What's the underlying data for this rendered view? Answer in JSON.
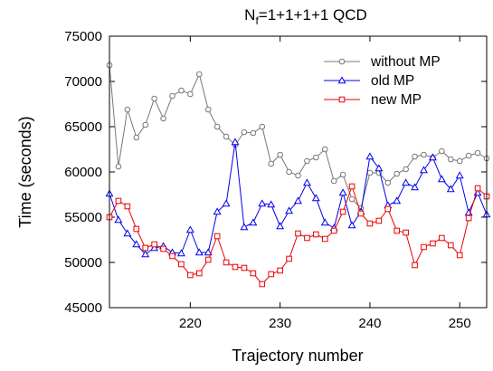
{
  "chart_data": {
    "type": "line",
    "title_main": "N",
    "title_sub": "f",
    "title_rest": "=1+1+1+1  QCD",
    "xlabel": "Trajectory number",
    "ylabel": "Time (seconds)",
    "xlim": [
      211,
      253
    ],
    "ylim": [
      45000,
      75000
    ],
    "xticks": [
      220,
      230,
      240,
      250
    ],
    "yticks": [
      45000,
      50000,
      55000,
      60000,
      65000,
      70000,
      75000
    ],
    "legend_position": "top-right",
    "x": [
      211,
      212,
      213,
      214,
      215,
      216,
      217,
      218,
      219,
      220,
      221,
      222,
      223,
      224,
      225,
      226,
      227,
      228,
      229,
      230,
      231,
      232,
      233,
      234,
      235,
      236,
      237,
      238,
      239,
      240,
      241,
      242,
      243,
      244,
      245,
      246,
      247,
      248,
      249,
      250,
      251,
      252,
      253
    ],
    "series": [
      {
        "name": "without MP",
        "color": "#777777",
        "marker": "circle",
        "values": [
          71800,
          60600,
          66900,
          63800,
          65200,
          68100,
          65900,
          68400,
          69000,
          68600,
          70800,
          66900,
          65000,
          63900,
          63000,
          64400,
          64300,
          65000,
          60900,
          61900,
          60000,
          59600,
          61200,
          61600,
          62500,
          59000,
          59700,
          57000,
          56000,
          59900,
          59900,
          58800,
          59800,
          60300,
          61700,
          61900,
          61600,
          62300,
          61400,
          61200,
          61800,
          62100,
          61500
        ]
      },
      {
        "name": "old MP",
        "color": "#0000ee",
        "marker": "triangle",
        "values": [
          57600,
          54700,
          53200,
          52000,
          50900,
          51600,
          51800,
          51100,
          51000,
          53600,
          51100,
          51100,
          55600,
          56500,
          63300,
          53900,
          54400,
          56500,
          56400,
          54000,
          55700,
          56800,
          58800,
          57100,
          54400,
          53800,
          57700,
          54100,
          55600,
          61700,
          60400,
          56300,
          56800,
          58800,
          58300,
          60200,
          61600,
          59200,
          58100,
          59600,
          55500,
          57700,
          55300
        ]
      },
      {
        "name": "new MP",
        "color": "#ee0000",
        "marker": "square",
        "values": [
          55000,
          56800,
          56200,
          53700,
          51600,
          52000,
          51500,
          50700,
          49800,
          48600,
          48800,
          50300,
          52900,
          50000,
          49500,
          49400,
          48800,
          47600,
          48700,
          49100,
          50400,
          53200,
          52700,
          53100,
          52600,
          53500,
          55600,
          58400,
          55400,
          54300,
          54600,
          55900,
          53500,
          53300,
          49700,
          51700,
          52100,
          52700,
          51900,
          50800,
          54900,
          58200,
          57300
        ]
      }
    ]
  }
}
